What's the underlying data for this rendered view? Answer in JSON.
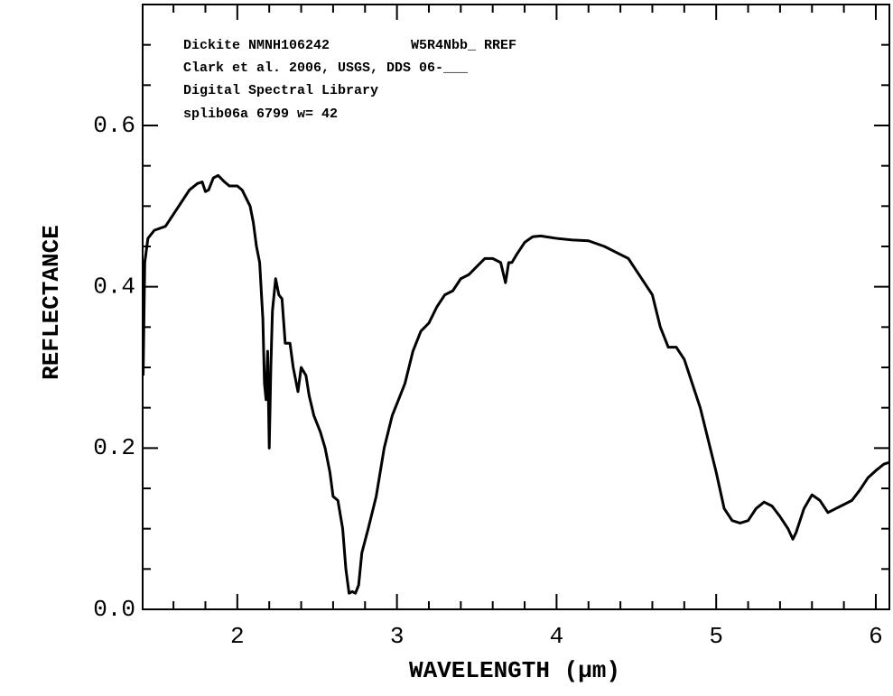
{
  "chart_data": {
    "type": "line",
    "annotations": [
      "Dickite NMNH106242          W5R4Nbb_ RREF",
      "Clark et al. 2006, USGS, DDS 06-___",
      "Digital Spectral Library",
      "splib06a 6799 w= 42"
    ],
    "xlabel": "WAVELENGTH (µm)",
    "ylabel": "REFLECTANCE",
    "color": "#000000",
    "x": [
      1.41,
      1.42,
      1.44,
      1.48,
      1.55,
      1.6,
      1.65,
      1.7,
      1.75,
      1.78,
      1.8,
      1.82,
      1.85,
      1.88,
      1.92,
      1.95,
      2.0,
      2.03,
      2.08,
      2.1,
      2.12,
      2.14,
      2.16,
      2.17,
      2.18,
      2.19,
      2.2,
      2.21,
      2.22,
      2.24,
      2.26,
      2.28,
      2.3,
      2.33,
      2.35,
      2.38,
      2.4,
      2.43,
      2.45,
      2.48,
      2.52,
      2.55,
      2.58,
      2.6,
      2.63,
      2.66,
      2.68,
      2.7,
      2.72,
      2.74,
      2.76,
      2.78,
      2.82,
      2.87,
      2.92,
      2.97,
      3.0,
      3.05,
      3.1,
      3.15,
      3.2,
      3.25,
      3.3,
      3.35,
      3.4,
      3.45,
      3.5,
      3.55,
      3.6,
      3.65,
      3.68,
      3.7,
      3.72,
      3.75,
      3.8,
      3.85,
      3.9,
      4.0,
      4.1,
      4.2,
      4.3,
      4.4,
      4.45,
      4.5,
      4.55,
      4.6,
      4.65,
      4.7,
      4.75,
      4.8,
      4.85,
      4.9,
      4.95,
      5.0,
      5.05,
      5.1,
      5.15,
      5.2,
      5.25,
      5.3,
      5.35,
      5.4,
      5.45,
      5.48,
      5.5,
      5.55,
      5.6,
      5.65,
      5.7,
      5.75,
      5.8,
      5.85,
      5.9,
      5.95,
      6.0,
      6.05,
      6.08
    ],
    "values": [
      0.29,
      0.43,
      0.46,
      0.47,
      0.475,
      0.49,
      0.505,
      0.52,
      0.528,
      0.53,
      0.518,
      0.52,
      0.535,
      0.538,
      0.53,
      0.525,
      0.525,
      0.52,
      0.5,
      0.48,
      0.45,
      0.43,
      0.36,
      0.28,
      0.26,
      0.32,
      0.2,
      0.3,
      0.37,
      0.41,
      0.39,
      0.385,
      0.33,
      0.33,
      0.3,
      0.27,
      0.3,
      0.29,
      0.265,
      0.24,
      0.22,
      0.2,
      0.17,
      0.14,
      0.135,
      0.1,
      0.05,
      0.02,
      0.022,
      0.02,
      0.03,
      0.07,
      0.1,
      0.14,
      0.2,
      0.24,
      0.255,
      0.28,
      0.32,
      0.345,
      0.355,
      0.375,
      0.39,
      0.395,
      0.41,
      0.415,
      0.425,
      0.435,
      0.435,
      0.43,
      0.405,
      0.43,
      0.43,
      0.44,
      0.455,
      0.462,
      0.463,
      0.46,
      0.458,
      0.457,
      0.45,
      0.44,
      0.435,
      0.42,
      0.405,
      0.39,
      0.35,
      0.325,
      0.325,
      0.31,
      0.28,
      0.25,
      0.21,
      0.17,
      0.125,
      0.11,
      0.107,
      0.11,
      0.125,
      0.133,
      0.128,
      0.115,
      0.1,
      0.087,
      0.095,
      0.125,
      0.142,
      0.135,
      0.12,
      0.125,
      0.13,
      0.135,
      0.148,
      0.163,
      0.172,
      0.18,
      0.182
    ],
    "xlim": [
      1.407,
      6.085
    ],
    "ylim": [
      0,
      0.75
    ],
    "xticks": [
      2,
      3,
      4,
      5,
      6
    ],
    "yticks": [
      {
        "value": 0,
        "label": "0.0"
      },
      0.2,
      0.4,
      0.6
    ],
    "xminorticks": [
      1.6,
      1.8,
      2.2,
      2.4,
      2.6,
      2.8,
      3.2,
      3.4,
      3.6,
      3.8,
      4.2,
      4.4,
      4.6,
      4.8,
      5.2,
      5.4,
      5.6,
      5.8,
      6.0
    ],
    "yminorticks": [
      0.05,
      0.1,
      0.15,
      0.25,
      0.3,
      0.35,
      0.45,
      0.5,
      0.55,
      0.65,
      0.7
    ]
  }
}
